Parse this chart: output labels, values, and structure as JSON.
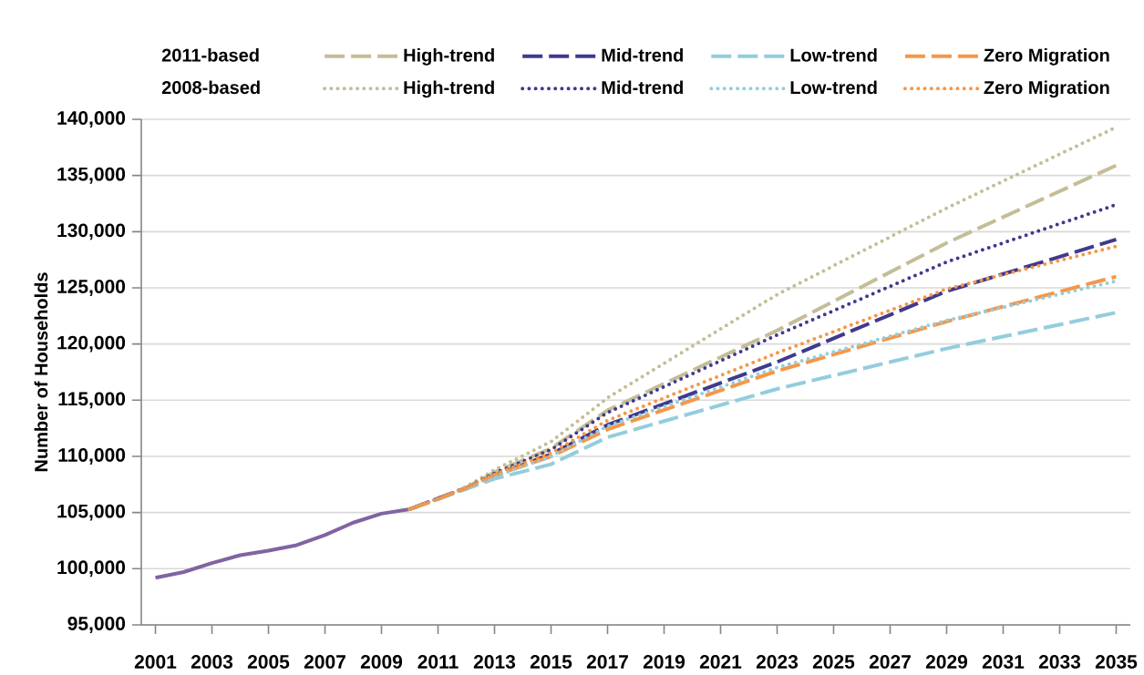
{
  "chart_data": {
    "type": "line",
    "ylabel": "Number of Households",
    "annotations": [
      "2011-based",
      "2008-based"
    ],
    "xlim": [
      2000.5,
      2035.5
    ],
    "xticks": [
      2001,
      2003,
      2005,
      2007,
      2009,
      2011,
      2013,
      2015,
      2017,
      2019,
      2021,
      2023,
      2025,
      2027,
      2029,
      2031,
      2033,
      2035
    ],
    "ylim": [
      95000,
      140000
    ],
    "yticks": [
      {
        "value": 95000,
        "label": "95,000"
      },
      {
        "value": 100000,
        "label": "100,000"
      },
      {
        "value": 105000,
        "label": "105,000"
      },
      {
        "value": 110000,
        "label": "110,000"
      },
      {
        "value": 115000,
        "label": "115,000"
      },
      {
        "value": 120000,
        "label": "120,000"
      },
      {
        "value": 125000,
        "label": "125,000"
      },
      {
        "value": 130000,
        "label": "130,000"
      },
      {
        "value": 135000,
        "label": "135,000"
      },
      {
        "value": 140000,
        "label": "140,000"
      }
    ],
    "grid": "y",
    "legend": "top",
    "series": [
      {
        "color": "#8064a2",
        "line_style": "solid",
        "x": [
          2001,
          2002,
          2003,
          2004,
          2005,
          2006,
          2007,
          2008,
          2009,
          2010
        ],
        "values": [
          99200,
          99700,
          100500,
          101200,
          101600,
          102100,
          103000,
          104100,
          104900,
          105300
        ]
      },
      {
        "name": "High-trend",
        "color": "#c4bd97",
        "line_style": "dashed",
        "x": [
          2010,
          2011,
          2012,
          2013,
          2015,
          2017,
          2023,
          2029,
          2035
        ],
        "values": [
          105300,
          106200,
          107200,
          108600,
          110700,
          114100,
          121200,
          129000,
          135900
        ]
      },
      {
        "name": "Mid-trend",
        "color": "#3f3a8e",
        "line_style": "dashed",
        "x": [
          2010,
          2011,
          2012,
          2013,
          2015,
          2017,
          2023,
          2029,
          2035
        ],
        "values": [
          105300,
          null,
          107200,
          108300,
          110200,
          112800,
          118400,
          124700,
          129300
        ]
      },
      {
        "name": "Low-trend",
        "color": "#93cddd",
        "line_style": "dashed",
        "x": [
          2010,
          2011,
          2012,
          2013,
          2015,
          2017,
          2023,
          2029,
          2035
        ],
        "values": [
          105300,
          106200,
          107100,
          108000,
          109300,
          111700,
          116000,
          119600,
          122800
        ]
      },
      {
        "name": "Zero Migration",
        "color": "#f79646",
        "line_style": "dashed",
        "x": [
          2010,
          2011,
          2012,
          2013,
          2015,
          2017,
          2023,
          2029,
          2035
        ],
        "values": [
          105300,
          106200,
          107200,
          108300,
          110000,
          112400,
          117600,
          122000,
          126000
        ]
      },
      {
        "name": "High-trend",
        "color": "#c4bd97",
        "line_style": "dotted",
        "x": [
          2010,
          2011,
          2012,
          2013,
          2015,
          2017,
          2023,
          2029,
          2035
        ],
        "values": [
          105300,
          106200,
          107300,
          108800,
          111300,
          115200,
          124400,
          132100,
          139300
        ]
      },
      {
        "name": "Mid-trend",
        "color": "#3f3a8e",
        "line_style": "dotted",
        "x": [
          2010,
          2011,
          2012,
          2013,
          2015,
          2017,
          2023,
          2029,
          2035
        ],
        "values": [
          105300,
          null,
          107200,
          108500,
          110600,
          113900,
          120800,
          127300,
          132400
        ]
      },
      {
        "name": "Low-trend",
        "color": "#93cddd",
        "line_style": "dotted",
        "x": [
          2010,
          2011,
          2012,
          2013,
          2015,
          2017,
          2023,
          2029,
          2035
        ],
        "values": [
          105300,
          106200,
          107200,
          108200,
          110000,
          112700,
          117900,
          122100,
          125600
        ]
      },
      {
        "name": "Zero Migration",
        "color": "#f79646",
        "line_style": "dotted",
        "x": [
          2010,
          2011,
          2012,
          2013,
          2015,
          2017,
          2023,
          2029,
          2035
        ],
        "values": [
          105300,
          106200,
          107200,
          108400,
          110300,
          113200,
          119200,
          124900,
          128700
        ]
      }
    ]
  }
}
